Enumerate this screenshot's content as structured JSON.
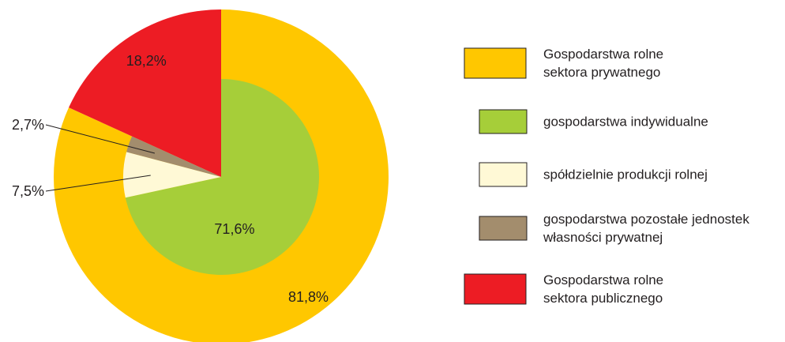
{
  "chart_data": {
    "type": "pie",
    "outer": {
      "slices": [
        {
          "label_ref": 0,
          "value": 81.8,
          "value_label": "81,8%",
          "color": "#FFC700"
        },
        {
          "label_ref": 4,
          "value": 18.2,
          "value_label": "18,2%",
          "color": "#ED1C24"
        }
      ]
    },
    "inner": {
      "slices": [
        {
          "label_ref": 1,
          "value": 71.6,
          "value_label": "71,6%",
          "color": "#A6CE39"
        },
        {
          "label_ref": 2,
          "value": 7.5,
          "value_label": "7,5%",
          "color": "#FFF9D6"
        },
        {
          "label_ref": 3,
          "value": 2.7,
          "value_label": "2,7%",
          "color": "#A38D6D"
        }
      ]
    },
    "legend": {
      "position": "right",
      "items": [
        {
          "lines": [
            "Gospodarstwa rolne",
            "sektora prywatnego"
          ],
          "color": "#FFC700"
        },
        {
          "lines": [
            "gospodarstwa indywidualne"
          ],
          "color": "#A6CE39"
        },
        {
          "lines": [
            "spółdzielnie produkcji rolnej"
          ],
          "color": "#FFF9D6"
        },
        {
          "lines": [
            "gospodarstwa pozostałe jednostek",
            "własności prywatnej"
          ],
          "color": "#A38D6D"
        },
        {
          "lines": [
            "Gospodarstwa rolne",
            "sektora publicznego"
          ],
          "color": "#ED1C24"
        }
      ]
    }
  }
}
